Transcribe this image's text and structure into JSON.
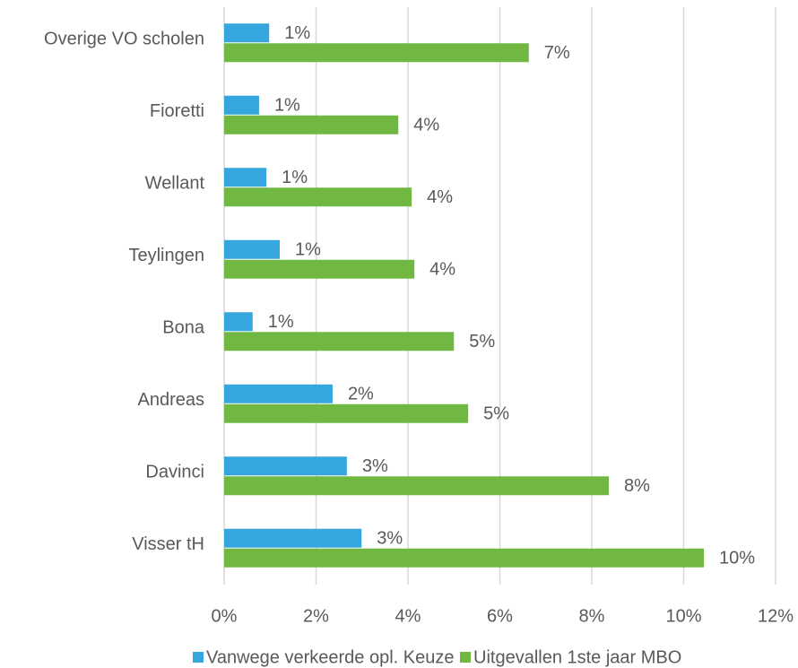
{
  "chart_data": {
    "type": "hbar",
    "categories": [
      "Overige VO scholen",
      "Fioretti",
      "Wellant",
      "Teylingen",
      "Bona",
      "Andreas",
      "Davinci",
      "Visser tH"
    ],
    "series": [
      {
        "name": "Vanwege verkeerde opl. Keuze",
        "color": "#35a6de",
        "values": [
          0.98,
          0.76,
          0.92,
          1.21,
          0.62,
          2.36,
          2.67,
          2.99
        ],
        "value_labels": [
          "1%",
          "1%",
          "1%",
          "1%",
          "1%",
          "2%",
          "3%",
          "3%"
        ]
      },
      {
        "name": "Uitgevallen 1ste jaar MBO",
        "color": "#71b843",
        "values": [
          6.63,
          3.79,
          4.08,
          4.14,
          5.0,
          5.31,
          8.37,
          10.44
        ],
        "value_labels": [
          "7%",
          "4%",
          "4%",
          "4%",
          "5%",
          "5%",
          "8%",
          "10%"
        ]
      }
    ],
    "xlim": [
      0,
      12
    ],
    "xticks": [
      {
        "value": 0,
        "label": "0%"
      },
      {
        "value": 2,
        "label": "2%"
      },
      {
        "value": 4,
        "label": "4%"
      },
      {
        "value": 6,
        "label": "6%"
      },
      {
        "value": 8,
        "label": "8%"
      },
      {
        "value": 10,
        "label": "10%"
      },
      {
        "value": 12,
        "label": "12%"
      }
    ],
    "grid": true,
    "legend": "bottom"
  }
}
